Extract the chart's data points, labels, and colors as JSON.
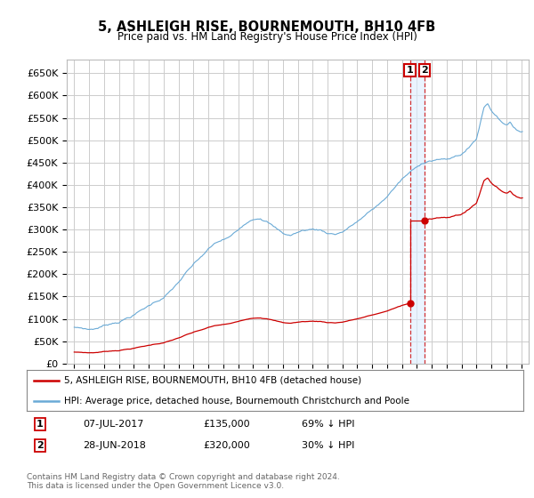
{
  "title": "5, ASHLEIGH RISE, BOURNEMOUTH, BH10 4FB",
  "subtitle": "Price paid vs. HM Land Registry's House Price Index (HPI)",
  "hpi_color": "#6aaad6",
  "price_color": "#cc0000",
  "sale1_date_num": 2017.53,
  "sale1_price": 135000,
  "sale1_label": "1",
  "sale1_year_label": "07-JUL-2017",
  "sale1_hpi_pct": "69% ↓ HPI",
  "sale2_date_num": 2018.49,
  "sale2_price": 320000,
  "sale2_label": "2",
  "sale2_year_label": "28-JUN-2018",
  "sale2_hpi_pct": "30% ↓ HPI",
  "legend_label1": "5, ASHLEIGH RISE, BOURNEMOUTH, BH10 4FB (detached house)",
  "legend_label2": "HPI: Average price, detached house, Bournemouth Christchurch and Poole",
  "footer1": "Contains HM Land Registry data © Crown copyright and database right 2024.",
  "footer2": "This data is licensed under the Open Government Licence v3.0.",
  "ylim_max": 680000,
  "ylim_min": 0,
  "xlim_min": 1994.5,
  "xlim_max": 2025.5,
  "background_color": "#ffffff",
  "grid_color": "#cccccc"
}
